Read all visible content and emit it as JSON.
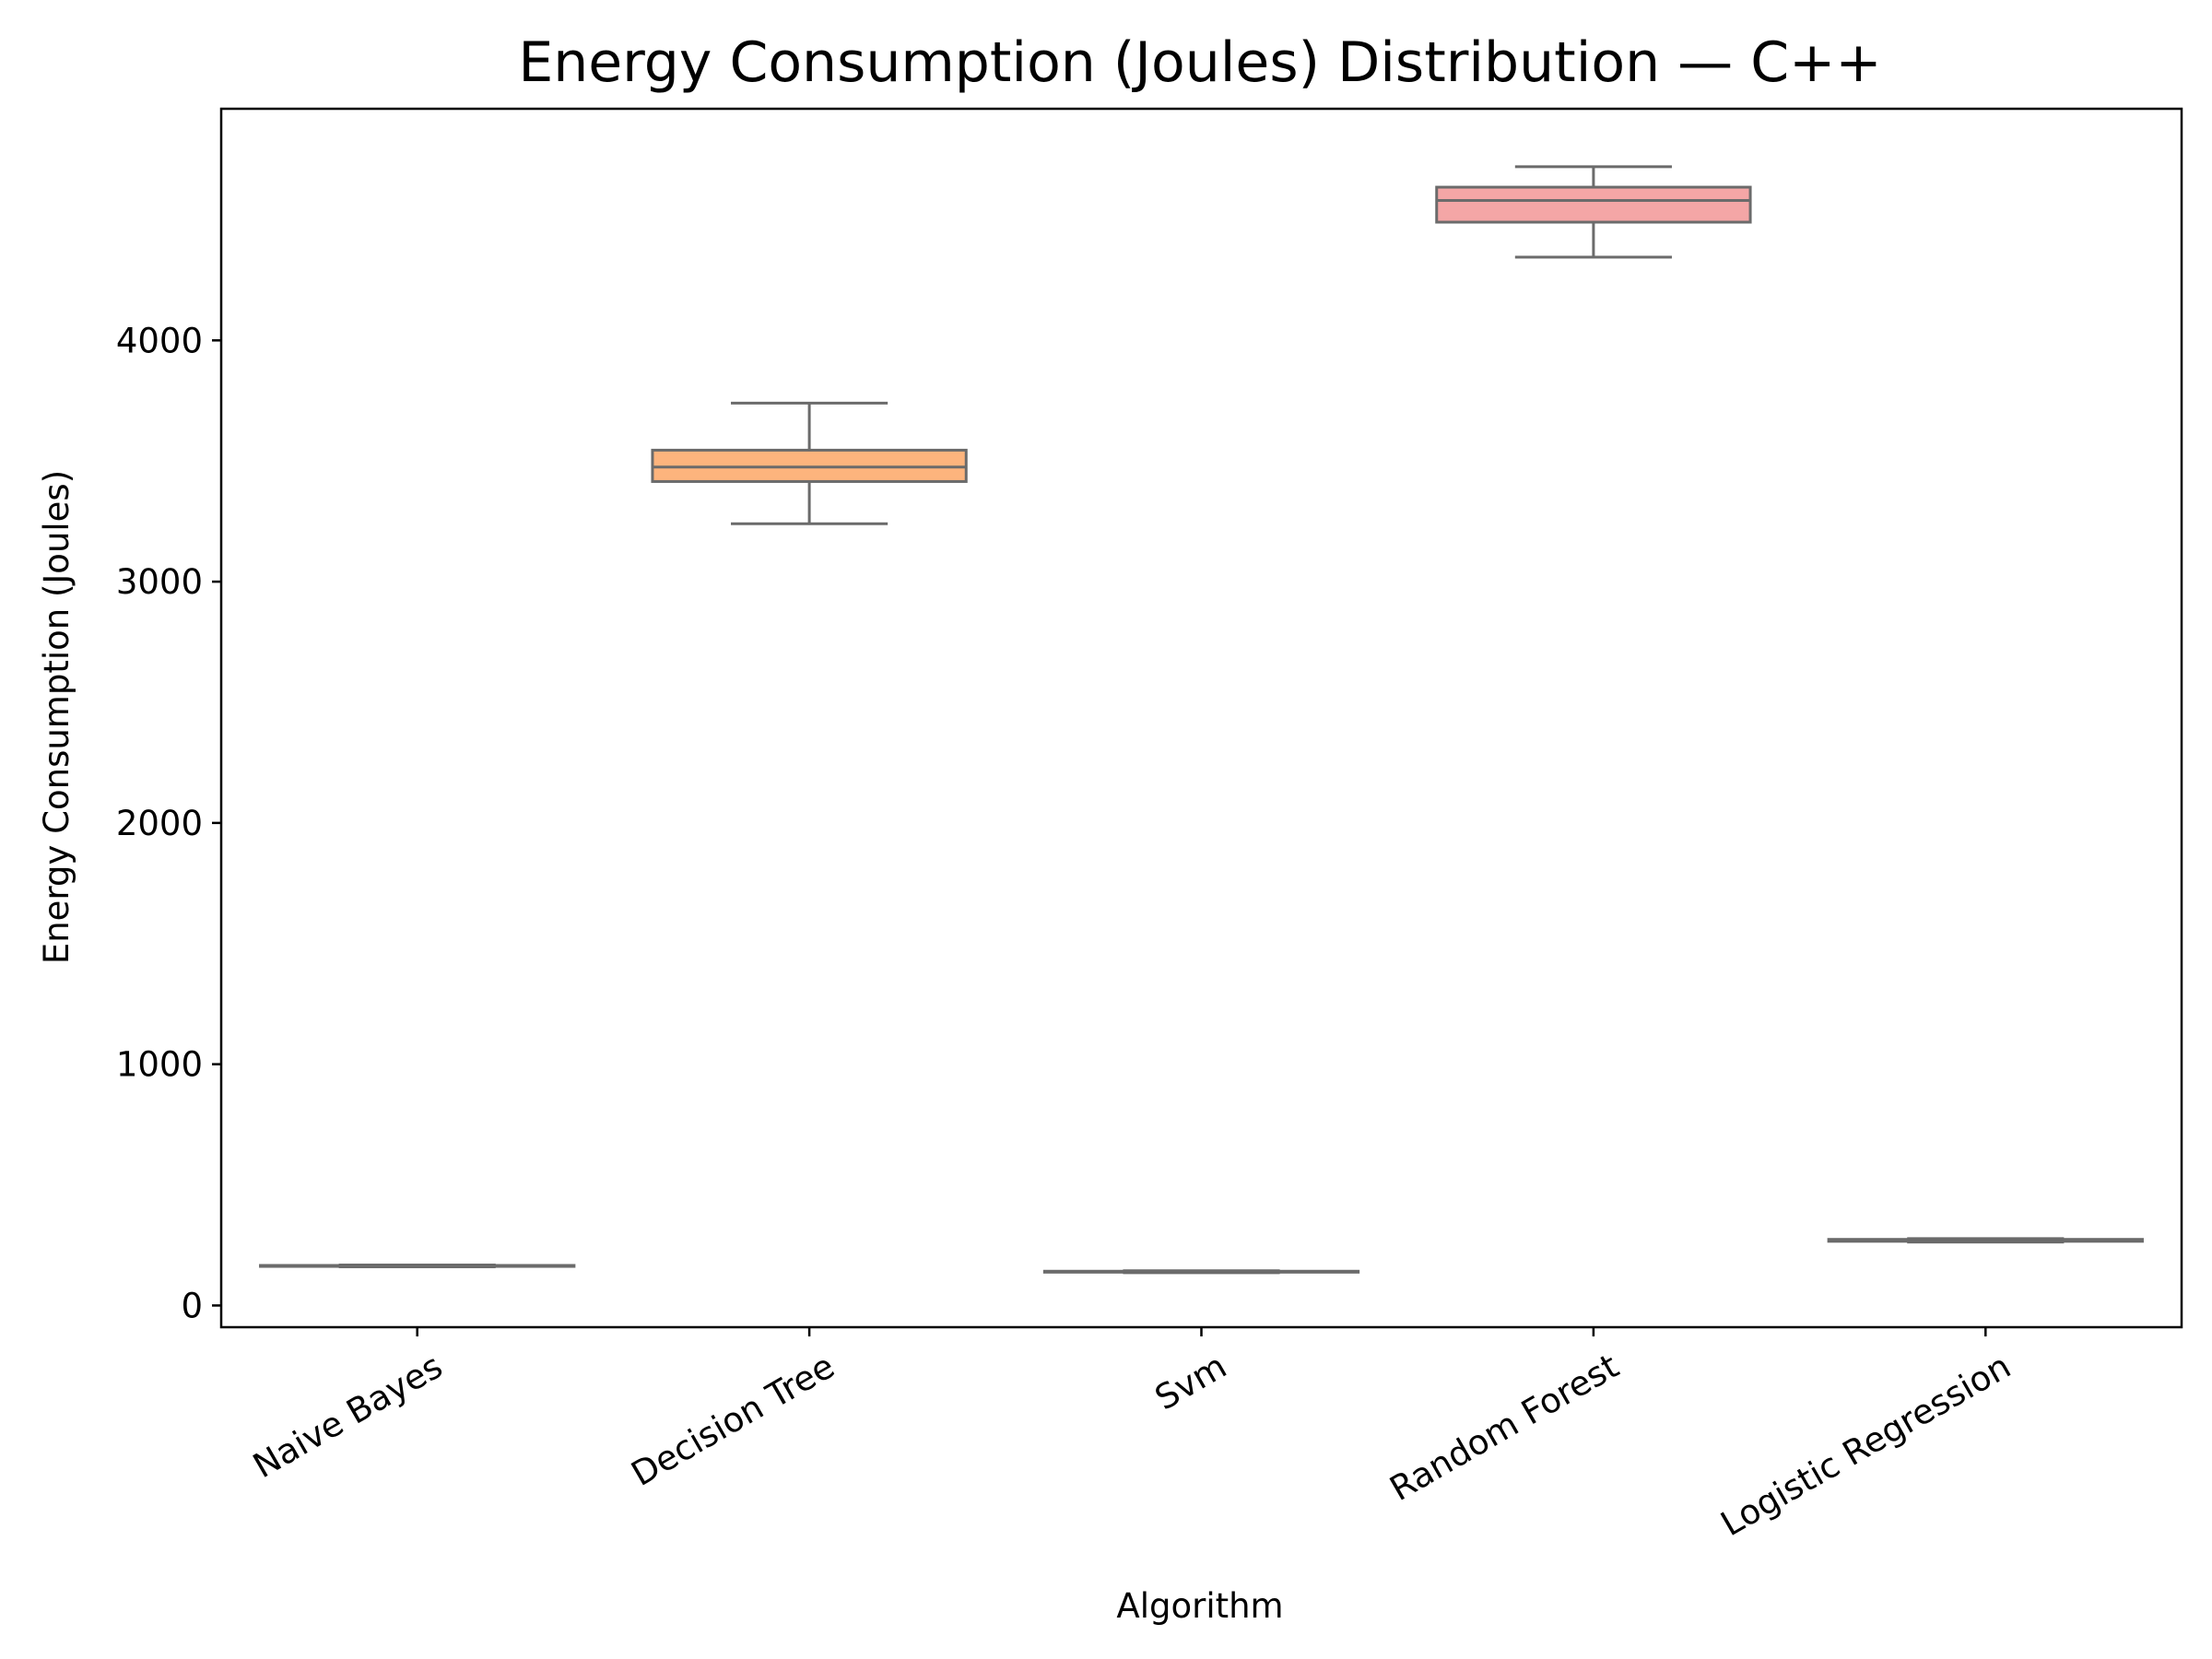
{
  "chart_data": {
    "type": "box",
    "title": "Energy Consumption (Joules) Distribution — C++",
    "xlabel": "Algorithm",
    "ylabel": "Energy Consumption (Joules)",
    "categories": [
      "Naive Bayes",
      "Decision Tree",
      "Svm",
      "Random Forest",
      "Logistic Regression"
    ],
    "boxes": [
      {
        "category": "Naive Bayes",
        "whisker_low": 160,
        "q1": 162,
        "median": 164,
        "q3": 166,
        "whisker_high": 168,
        "color": "#8dd3c7"
      },
      {
        "category": "Decision Tree",
        "whisker_low": 3240,
        "q1": 3415,
        "median": 3475,
        "q3": 3545,
        "whisker_high": 3740,
        "color": "#fdb47d"
      },
      {
        "category": "Svm",
        "whisker_low": 136,
        "q1": 138,
        "median": 140,
        "q3": 142,
        "whisker_high": 144,
        "color": "#bebada"
      },
      {
        "category": "Random Forest",
        "whisker_low": 4345,
        "q1": 4490,
        "median": 4580,
        "q3": 4635,
        "whisker_high": 4720,
        "color": "#f4a6a6"
      },
      {
        "category": "Logistic Regression",
        "whisker_low": 263,
        "q1": 266,
        "median": 270,
        "q3": 274,
        "whisker_high": 277,
        "color": "#80b1d3"
      }
    ],
    "y_ticks": [
      0,
      1000,
      2000,
      3000,
      4000
    ],
    "ylim": [
      -90,
      4960
    ],
    "grid": false,
    "legend": "none",
    "x_tick_rotation_deg": 30,
    "line_color": "#6b6b6b"
  }
}
